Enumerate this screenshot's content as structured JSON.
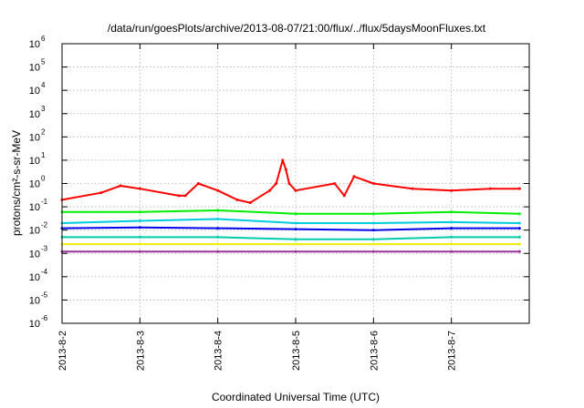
{
  "chart_data": {
    "type": "line",
    "title": "/data/run/goesPlots/archive/2013-08-07/21:00/flux/../flux/5daysMoonFluxes.txt",
    "xlabel": "Coordinated Universal Time (UTC)",
    "ylabel": "protons/cm²-s-sr-MeV",
    "y_scale": "log",
    "ylim": [
      1e-06,
      1000000.0
    ],
    "yticks": [
      {
        "value": 1e-06,
        "base": "10",
        "exp": "-6"
      },
      {
        "value": 1e-05,
        "base": "10",
        "exp": "-5"
      },
      {
        "value": 0.0001,
        "base": "10",
        "exp": "-4"
      },
      {
        "value": 0.001,
        "base": "10",
        "exp": "-3"
      },
      {
        "value": 0.01,
        "base": "10",
        "exp": "-2"
      },
      {
        "value": 0.1,
        "base": "10",
        "exp": "-1"
      },
      {
        "value": 1,
        "base": "10",
        "exp": "0"
      },
      {
        "value": 10,
        "base": "10",
        "exp": "1"
      },
      {
        "value": 100,
        "base": "10",
        "exp": "2"
      },
      {
        "value": 1000,
        "base": "10",
        "exp": "3"
      },
      {
        "value": 10000,
        "base": "10",
        "exp": "4"
      },
      {
        "value": 100000,
        "base": "10",
        "exp": "5"
      },
      {
        "value": 1000000,
        "base": "10",
        "exp": "6"
      }
    ],
    "xlim": [
      "2013-08-02",
      "2013-08-08"
    ],
    "xticks": [
      {
        "date": "2013-08-02",
        "label": "2013-8-2"
      },
      {
        "date": "2013-08-03",
        "label": "2013-8-3"
      },
      {
        "date": "2013-08-04",
        "label": "2013-8-4"
      },
      {
        "date": "2013-08-05",
        "label": "2013-8-5"
      },
      {
        "date": "2013-08-06",
        "label": "2013-8-6"
      },
      {
        "date": "2013-08-07",
        "label": "2013-8-7"
      }
    ],
    "grid": true,
    "legend": "none",
    "series": [
      {
        "color": "#ff0000",
        "x": [
          "2013-08-02",
          "2013-08-02 12:00",
          "2013-08-02 18:00",
          "2013-08-03",
          "2013-08-03 12:00",
          "2013-08-03 14:00",
          "2013-08-03 18:00",
          "2013-08-04",
          "2013-08-04 06:00",
          "2013-08-04 10:00",
          "2013-08-04 16:00",
          "2013-08-04 18:00",
          "2013-08-04 20:00",
          "2013-08-04 21:00",
          "2013-08-04 22:00",
          "2013-08-05",
          "2013-08-05 12:00",
          "2013-08-05 15:00",
          "2013-08-05 18:00",
          "2013-08-06",
          "2013-08-06 12:00",
          "2013-08-07",
          "2013-08-07 12:00",
          "2013-08-07 21:00"
        ],
        "y": [
          0.2,
          0.4,
          0.8,
          0.6,
          0.3,
          0.3,
          1.0,
          0.5,
          0.2,
          0.15,
          0.5,
          1.0,
          10,
          4,
          1.0,
          0.5,
          1.0,
          0.3,
          2.0,
          1.0,
          0.6,
          0.5,
          0.6,
          0.6
        ]
      },
      {
        "color": "#00ee00",
        "x": [
          "2013-08-02",
          "2013-08-03",
          "2013-08-04",
          "2013-08-05",
          "2013-08-06",
          "2013-08-07",
          "2013-08-07 21:00"
        ],
        "y": [
          0.06,
          0.06,
          0.07,
          0.05,
          0.05,
          0.06,
          0.05
        ]
      },
      {
        "color": "#00ccdd",
        "x": [
          "2013-08-02",
          "2013-08-03",
          "2013-08-04",
          "2013-08-05",
          "2013-08-06",
          "2013-08-07",
          "2013-08-07 21:00"
        ],
        "y": [
          0.02,
          0.025,
          0.03,
          0.02,
          0.02,
          0.022,
          0.02
        ]
      },
      {
        "color": "#0000ee",
        "x": [
          "2013-08-02",
          "2013-08-03",
          "2013-08-04",
          "2013-08-05",
          "2013-08-06",
          "2013-08-07",
          "2013-08-07 21:00"
        ],
        "y": [
          0.012,
          0.013,
          0.012,
          0.011,
          0.01,
          0.012,
          0.012
        ]
      },
      {
        "color": "#00ccaa",
        "x": [
          "2013-08-02",
          "2013-08-03",
          "2013-08-04",
          "2013-08-05",
          "2013-08-06",
          "2013-08-07",
          "2013-08-07 21:00"
        ],
        "y": [
          0.005,
          0.005,
          0.005,
          0.004,
          0.004,
          0.005,
          0.005
        ]
      },
      {
        "color": "#eeee00",
        "x": [
          "2013-08-02",
          "2013-08-03",
          "2013-08-04",
          "2013-08-05",
          "2013-08-06",
          "2013-08-07",
          "2013-08-07 21:00"
        ],
        "y": [
          0.0025,
          0.0025,
          0.0025,
          0.0025,
          0.0025,
          0.0025,
          0.0025
        ]
      },
      {
        "color": "#993399",
        "x": [
          "2013-08-02",
          "2013-08-03",
          "2013-08-04",
          "2013-08-05",
          "2013-08-06",
          "2013-08-07",
          "2013-08-07 21:00"
        ],
        "y": [
          0.0012,
          0.0012,
          0.0012,
          0.0012,
          0.0012,
          0.0012,
          0.0012
        ]
      }
    ]
  }
}
